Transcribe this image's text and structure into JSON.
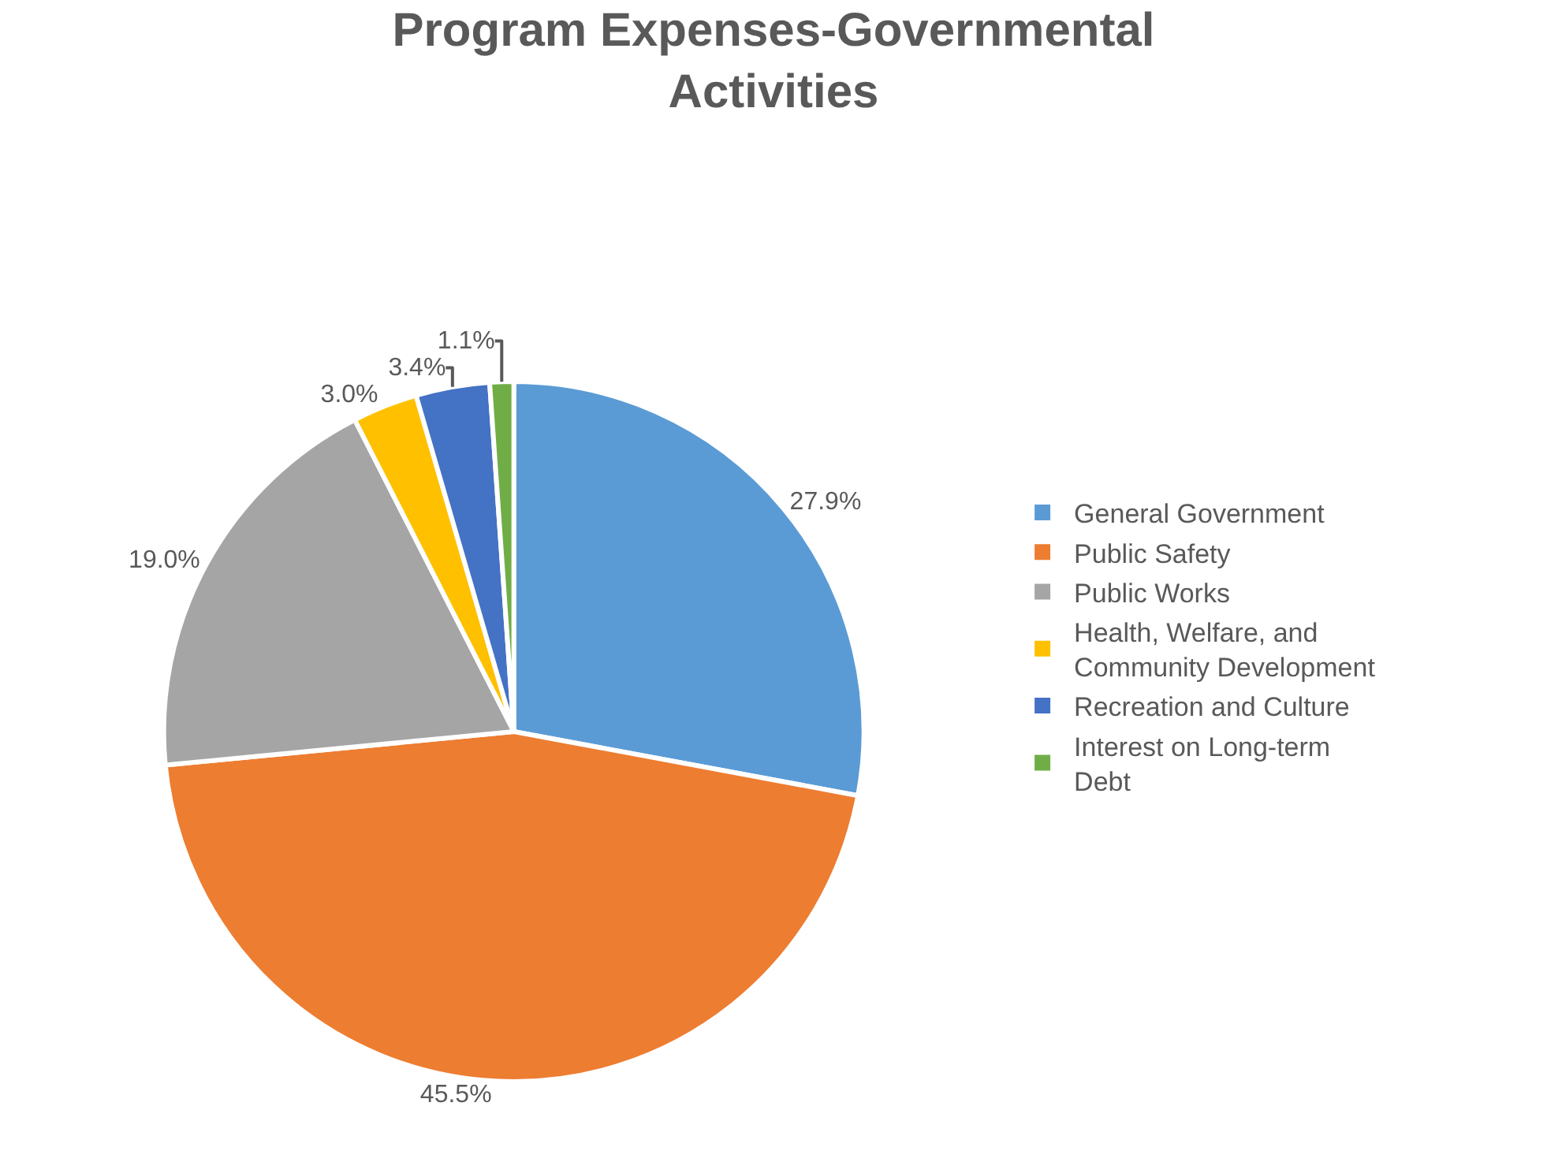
{
  "chart_data": {
    "type": "pie",
    "title": "Program Expenses-Governmental Activities",
    "categories": [
      "General Government",
      "Public Safety",
      "Public Works",
      "Health, Welfare, and Community Development",
      "Recreation and Culture",
      "Interest on Long-term Debt"
    ],
    "values": [
      27.9,
      45.5,
      19.0,
      3.0,
      3.4,
      1.1
    ],
    "value_labels": [
      "27.9%",
      "45.5%",
      "19.0%",
      "3.0%",
      "3.4%",
      "1.1%"
    ],
    "colors": [
      "#5b9bd5",
      "#ed7d31",
      "#a5a5a5",
      "#ffc000",
      "#4472c4",
      "#70ad47"
    ],
    "legend": "right"
  }
}
